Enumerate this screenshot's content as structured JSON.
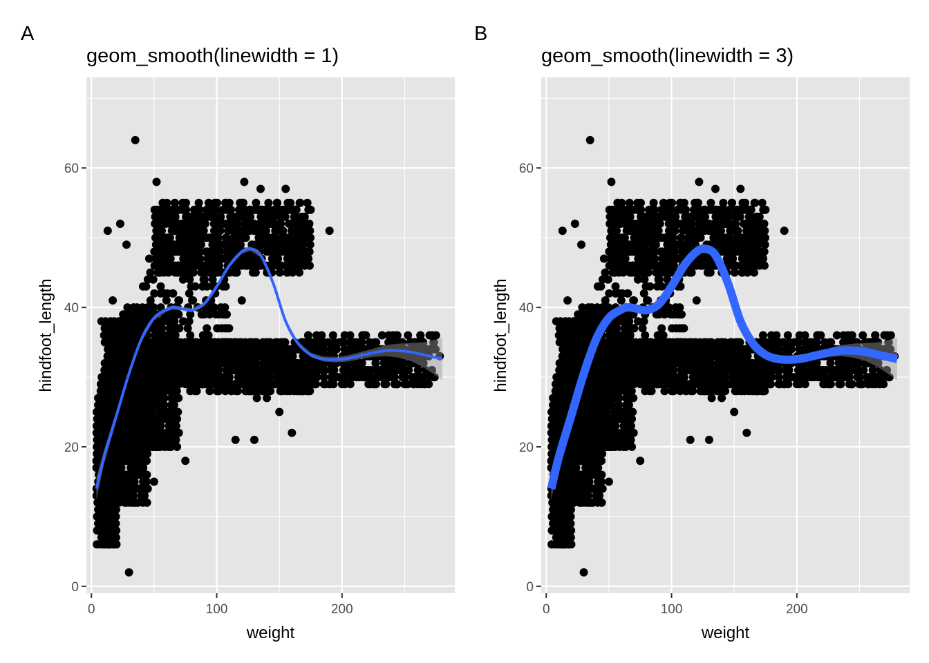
{
  "colors": {
    "panel_bg": "#e5e5e5",
    "grid": "#ffffff",
    "points": "#000000",
    "smooth_line": "#3366ff",
    "ribbon": "#999999",
    "tick_text": "#4d4d4d"
  },
  "chart_data": [
    {
      "tag": "A",
      "type": "scatter",
      "title": "geom_smooth(linewidth = 1)",
      "xlabel": "weight",
      "ylabel": "hindfoot_length",
      "xlim": [
        -4,
        290
      ],
      "ylim": [
        -1,
        73
      ],
      "x_ticks": [
        0,
        100,
        200
      ],
      "y_ticks": [
        0,
        20,
        40,
        60
      ],
      "x_tick_labels": [
        "0",
        "100",
        "200"
      ],
      "y_tick_labels": [
        "0",
        "20",
        "40",
        "60"
      ],
      "grid": true,
      "smooth_linewidth": 1,
      "smooth": {
        "x": [
          4,
          10,
          20,
          30,
          40,
          50,
          60,
          65,
          70,
          80,
          90,
          100,
          110,
          120,
          127,
          135,
          145,
          155,
          165,
          175,
          185,
          195,
          205,
          215,
          225,
          235,
          245,
          255,
          265,
          275,
          280
        ],
        "y": [
          14,
          18.5,
          24.5,
          30.5,
          35.5,
          38.5,
          39.7,
          40,
          39.9,
          39.6,
          40.5,
          43,
          46,
          48,
          48.4,
          47.5,
          43.5,
          38,
          34.8,
          33.2,
          32.6,
          32.5,
          32.7,
          33.1,
          33.5,
          33.8,
          33.8,
          33.6,
          33.2,
          32.8,
          32.6
        ]
      },
      "ribbon_halfwidth": [
        1.6,
        1.0,
        0.7,
        0.5,
        0.4,
        0.35,
        0.3,
        0.3,
        0.3,
        0.3,
        0.3,
        0.3,
        0.3,
        0.3,
        0.3,
        0.3,
        0.3,
        0.3,
        0.3,
        0.3,
        0.35,
        0.4,
        0.45,
        0.5,
        0.6,
        0.8,
        1.0,
        1.3,
        1.8,
        2.6,
        3.1
      ],
      "points": {
        "clusters": [
          {
            "x_range": [
              4,
              20
            ],
            "y_range": [
              6,
              30
            ],
            "n": 420
          },
          {
            "x_range": [
              10,
              45
            ],
            "y_range": [
              12,
              38
            ],
            "n": 700
          },
          {
            "x_range": [
              25,
              70
            ],
            "y_range": [
              20,
              40
            ],
            "n": 520
          },
          {
            "x_range": [
              50,
              180
            ],
            "y_range": [
              28,
              35
            ],
            "n": 900
          },
          {
            "x_range": [
              170,
              275
            ],
            "y_range": [
              29,
              36
            ],
            "n": 380
          },
          {
            "x_range": [
              50,
              175
            ],
            "y_range": [
              45,
              55
            ],
            "n": 700
          },
          {
            "x_range": [
              40,
              110
            ],
            "y_range": [
              30,
              47
            ],
            "n": 160
          }
        ],
        "singles": [
          {
            "x": 35,
            "y": 64
          },
          {
            "x": 52,
            "y": 58
          },
          {
            "x": 30,
            "y": 2
          },
          {
            "x": 122,
            "y": 58
          },
          {
            "x": 135,
            "y": 57
          },
          {
            "x": 155,
            "y": 57
          },
          {
            "x": 13,
            "y": 51
          },
          {
            "x": 23,
            "y": 52
          },
          {
            "x": 28,
            "y": 49
          },
          {
            "x": 190,
            "y": 51
          },
          {
            "x": 115,
            "y": 21
          },
          {
            "x": 130,
            "y": 21
          },
          {
            "x": 160,
            "y": 22
          },
          {
            "x": 75,
            "y": 18
          },
          {
            "x": 50,
            "y": 15
          },
          {
            "x": 150,
            "y": 25
          },
          {
            "x": 108,
            "y": 39
          },
          {
            "x": 120,
            "y": 41
          },
          {
            "x": 17,
            "y": 41
          },
          {
            "x": 8,
            "y": 38
          },
          {
            "x": 278,
            "y": 33
          },
          {
            "x": 275,
            "y": 36
          },
          {
            "x": 140,
            "y": 27
          },
          {
            "x": 132,
            "y": 27
          },
          {
            "x": 68,
            "y": 35
          },
          {
            "x": 55,
            "y": 25
          },
          {
            "x": 15,
            "y": 6
          },
          {
            "x": 8,
            "y": 7
          },
          {
            "x": 122,
            "y": 52
          }
        ]
      }
    },
    {
      "tag": "B",
      "type": "scatter",
      "title": "geom_smooth(linewidth = 3)",
      "xlabel": "weight",
      "ylabel": "hindfoot_length",
      "xlim": [
        -4,
        290
      ],
      "ylim": [
        -1,
        73
      ],
      "x_ticks": [
        0,
        100,
        200
      ],
      "y_ticks": [
        0,
        20,
        40,
        60
      ],
      "x_tick_labels": [
        "0",
        "100",
        "200"
      ],
      "y_tick_labels": [
        "0",
        "20",
        "40",
        "60"
      ],
      "grid": true,
      "smooth_linewidth": 3,
      "smooth": {
        "x": [
          4,
          10,
          20,
          30,
          40,
          50,
          60,
          65,
          70,
          80,
          90,
          100,
          110,
          120,
          127,
          135,
          145,
          155,
          165,
          175,
          185,
          195,
          205,
          215,
          225,
          235,
          245,
          255,
          265,
          275,
          280
        ],
        "y": [
          14,
          18.5,
          24.5,
          30.5,
          35.5,
          38.5,
          39.7,
          40,
          39.9,
          39.6,
          40.5,
          43,
          46,
          48,
          48.4,
          47.5,
          43.5,
          38,
          34.8,
          33.2,
          32.6,
          32.5,
          32.7,
          33.1,
          33.5,
          33.8,
          33.8,
          33.6,
          33.2,
          32.8,
          32.6
        ]
      },
      "ribbon_halfwidth": [
        1.6,
        1.0,
        0.7,
        0.5,
        0.4,
        0.35,
        0.3,
        0.3,
        0.3,
        0.3,
        0.3,
        0.3,
        0.3,
        0.3,
        0.3,
        0.3,
        0.3,
        0.3,
        0.3,
        0.3,
        0.35,
        0.4,
        0.45,
        0.5,
        0.6,
        0.8,
        1.0,
        1.3,
        1.8,
        2.6,
        3.1
      ],
      "points": {
        "clusters": [
          {
            "x_range": [
              4,
              20
            ],
            "y_range": [
              6,
              30
            ],
            "n": 420
          },
          {
            "x_range": [
              10,
              45
            ],
            "y_range": [
              12,
              38
            ],
            "n": 700
          },
          {
            "x_range": [
              25,
              70
            ],
            "y_range": [
              20,
              40
            ],
            "n": 520
          },
          {
            "x_range": [
              50,
              180
            ],
            "y_range": [
              28,
              35
            ],
            "n": 900
          },
          {
            "x_range": [
              170,
              275
            ],
            "y_range": [
              29,
              36
            ],
            "n": 380
          },
          {
            "x_range": [
              50,
              175
            ],
            "y_range": [
              45,
              55
            ],
            "n": 700
          },
          {
            "x_range": [
              40,
              110
            ],
            "y_range": [
              30,
              47
            ],
            "n": 160
          }
        ],
        "singles": [
          {
            "x": 35,
            "y": 64
          },
          {
            "x": 52,
            "y": 58
          },
          {
            "x": 30,
            "y": 2
          },
          {
            "x": 122,
            "y": 58
          },
          {
            "x": 135,
            "y": 57
          },
          {
            "x": 155,
            "y": 57
          },
          {
            "x": 13,
            "y": 51
          },
          {
            "x": 23,
            "y": 52
          },
          {
            "x": 28,
            "y": 49
          },
          {
            "x": 190,
            "y": 51
          },
          {
            "x": 115,
            "y": 21
          },
          {
            "x": 130,
            "y": 21
          },
          {
            "x": 160,
            "y": 22
          },
          {
            "x": 75,
            "y": 18
          },
          {
            "x": 50,
            "y": 15
          },
          {
            "x": 150,
            "y": 25
          },
          {
            "x": 108,
            "y": 39
          },
          {
            "x": 120,
            "y": 41
          },
          {
            "x": 17,
            "y": 41
          },
          {
            "x": 8,
            "y": 38
          },
          {
            "x": 278,
            "y": 33
          },
          {
            "x": 275,
            "y": 36
          },
          {
            "x": 140,
            "y": 27
          },
          {
            "x": 132,
            "y": 27
          },
          {
            "x": 68,
            "y": 35
          },
          {
            "x": 55,
            "y": 25
          },
          {
            "x": 15,
            "y": 6
          },
          {
            "x": 8,
            "y": 7
          },
          {
            "x": 122,
            "y": 52
          }
        ]
      }
    }
  ]
}
